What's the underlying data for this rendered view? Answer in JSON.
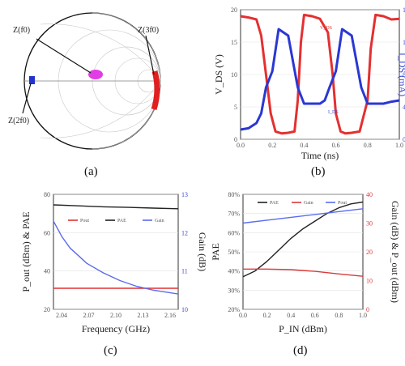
{
  "captions": {
    "a": "(a)",
    "b": "(b)",
    "c": "(c)",
    "d": "(d)"
  },
  "chart_data": [
    {
      "id": "a",
      "type": "smith-chart",
      "labels": {
        "z_f0": "Z(f0)",
        "z_2f0": "Z(2f0)",
        "z_3f0": "Z(3f0)"
      },
      "colors": {
        "f0": "#e23ce6",
        "f2": "#2233cc",
        "f3": "#e02020"
      }
    },
    {
      "id": "b",
      "type": "line",
      "xlabel": "Time (ns)",
      "ylabel": "V_DS (V)",
      "y2label": "I_DS (mA)",
      "x_ticks": [
        "0.0",
        "0.2",
        "0.4",
        "0.6",
        "0.8",
        "1.0"
      ],
      "y_ticks": [
        "0",
        "5",
        "10",
        "15",
        "20"
      ],
      "y2_ticks": [
        "0",
        "40",
        "80",
        "120",
        "160"
      ],
      "xlim": [
        0,
        1.0
      ],
      "ylim": [
        0,
        20
      ],
      "y2lim": [
        -20,
        180
      ],
      "series": [
        {
          "name": "V_DS",
          "color": "#e43030",
          "axis": "left",
          "x": [
            0,
            0.05,
            0.1,
            0.13,
            0.16,
            0.19,
            0.22,
            0.26,
            0.3,
            0.34,
            0.36,
            0.38,
            0.4,
            0.45,
            0.5,
            0.55,
            0.58,
            0.6,
            0.63,
            0.66,
            0.7,
            0.75,
            0.8,
            0.82,
            0.85,
            0.9,
            0.95,
            1.0
          ],
          "y": [
            19,
            18.8,
            18.5,
            16,
            10,
            4,
            1.2,
            0.9,
            1,
            1.2,
            6,
            15,
            19.2,
            19,
            18.6,
            16.5,
            10,
            4,
            1.2,
            0.9,
            1,
            1.2,
            6,
            14,
            19.2,
            19,
            18.5,
            18.6
          ]
        },
        {
          "name": "I_DS",
          "color": "#2a37d4",
          "axis": "right",
          "x": [
            0,
            0.05,
            0.1,
            0.13,
            0.16,
            0.2,
            0.24,
            0.27,
            0.3,
            0.33,
            0.36,
            0.4,
            0.45,
            0.5,
            0.53,
            0.56,
            0.6,
            0.64,
            0.67,
            0.7,
            0.73,
            0.76,
            0.8,
            0.85,
            0.9,
            0.95,
            1.0
          ],
          "y": [
            -5,
            -3,
            5,
            20,
            60,
            85,
            150,
            145,
            140,
            100,
            60,
            35,
            35,
            35,
            40,
            60,
            85,
            150,
            145,
            140,
            100,
            60,
            35,
            35,
            35,
            38,
            40
          ]
        }
      ],
      "legend_labels": [
        "V_DS",
        "I_DS"
      ],
      "legend_position": "in-plot (near curves)"
    },
    {
      "id": "c",
      "type": "line",
      "xlabel": "Frequency (GHz)",
      "ylabel": "P_out (dBm) & PAE",
      "y2label": "Gain (dB)",
      "x_ticks": [
        "2.04",
        "2.07",
        "2.10",
        "2.13",
        "2.16"
      ],
      "y_ticks": [
        "20",
        "40",
        "60",
        "80"
      ],
      "y2_ticks": [
        "10",
        "11",
        "12",
        "13"
      ],
      "xlim": [
        2.02,
        2.17
      ],
      "ylim": [
        20,
        80
      ],
      "y2lim": [
        10,
        13
      ],
      "legend_position": "top-center",
      "series": [
        {
          "name": "Pout",
          "color": "#e43030",
          "axis": "left",
          "x": [
            2.02,
            2.05,
            2.08,
            2.11,
            2.14,
            2.17
          ],
          "y": [
            31,
            31,
            31,
            31,
            31,
            31
          ]
        },
        {
          "name": "PAE",
          "color": "#222222",
          "axis": "left",
          "x": [
            2.02,
            2.05,
            2.08,
            2.11,
            2.14,
            2.17
          ],
          "y": [
            74.5,
            74,
            73.5,
            73.2,
            72.8,
            72.5
          ]
        },
        {
          "name": "Gain",
          "color": "#5a6bf0",
          "axis": "right",
          "x": [
            2.02,
            2.03,
            2.04,
            2.05,
            2.06,
            2.08,
            2.1,
            2.12,
            2.14,
            2.17
          ],
          "y": [
            12.3,
            11.9,
            11.6,
            11.4,
            11.2,
            10.95,
            10.75,
            10.6,
            10.5,
            10.4
          ]
        }
      ]
    },
    {
      "id": "d",
      "type": "line",
      "xlabel": "P_IN (dBm)",
      "ylabel": "PAE",
      "y2label": "Gain (dB) & P_out (dBm)",
      "x_ticks": [
        "0.0",
        "0.2",
        "0.4",
        "0.6",
        "0.8",
        "1.0"
      ],
      "y_ticks": [
        "20%",
        "30%",
        "40%",
        "50%",
        "60%",
        "70%",
        "80%"
      ],
      "y2_ticks": [
        "0",
        "10",
        "20",
        "30",
        "40"
      ],
      "xlim": [
        0,
        1.0
      ],
      "ylim": [
        20,
        80
      ],
      "y2lim": [
        0,
        40
      ],
      "legend_position": "top",
      "series": [
        {
          "name": "PAE",
          "color": "#222222",
          "axis": "left",
          "x": [
            0,
            0.1,
            0.2,
            0.3,
            0.4,
            0.5,
            0.6,
            0.7,
            0.8,
            0.9,
            1.0
          ],
          "y": [
            37,
            40,
            45,
            51,
            57,
            62,
            66,
            70,
            73,
            75,
            76
          ]
        },
        {
          "name": "Gain",
          "color": "#d83a3a",
          "axis": "right",
          "x": [
            0,
            0.2,
            0.4,
            0.6,
            0.8,
            1.0
          ],
          "y": [
            14,
            14,
            13.8,
            13.2,
            12.3,
            11.5
          ]
        },
        {
          "name": "Pout",
          "color": "#5a6bf0",
          "axis": "right",
          "x": [
            0,
            0.2,
            0.4,
            0.6,
            0.8,
            1.0
          ],
          "y": [
            30,
            31,
            32,
            33,
            34,
            35
          ]
        }
      ]
    }
  ]
}
